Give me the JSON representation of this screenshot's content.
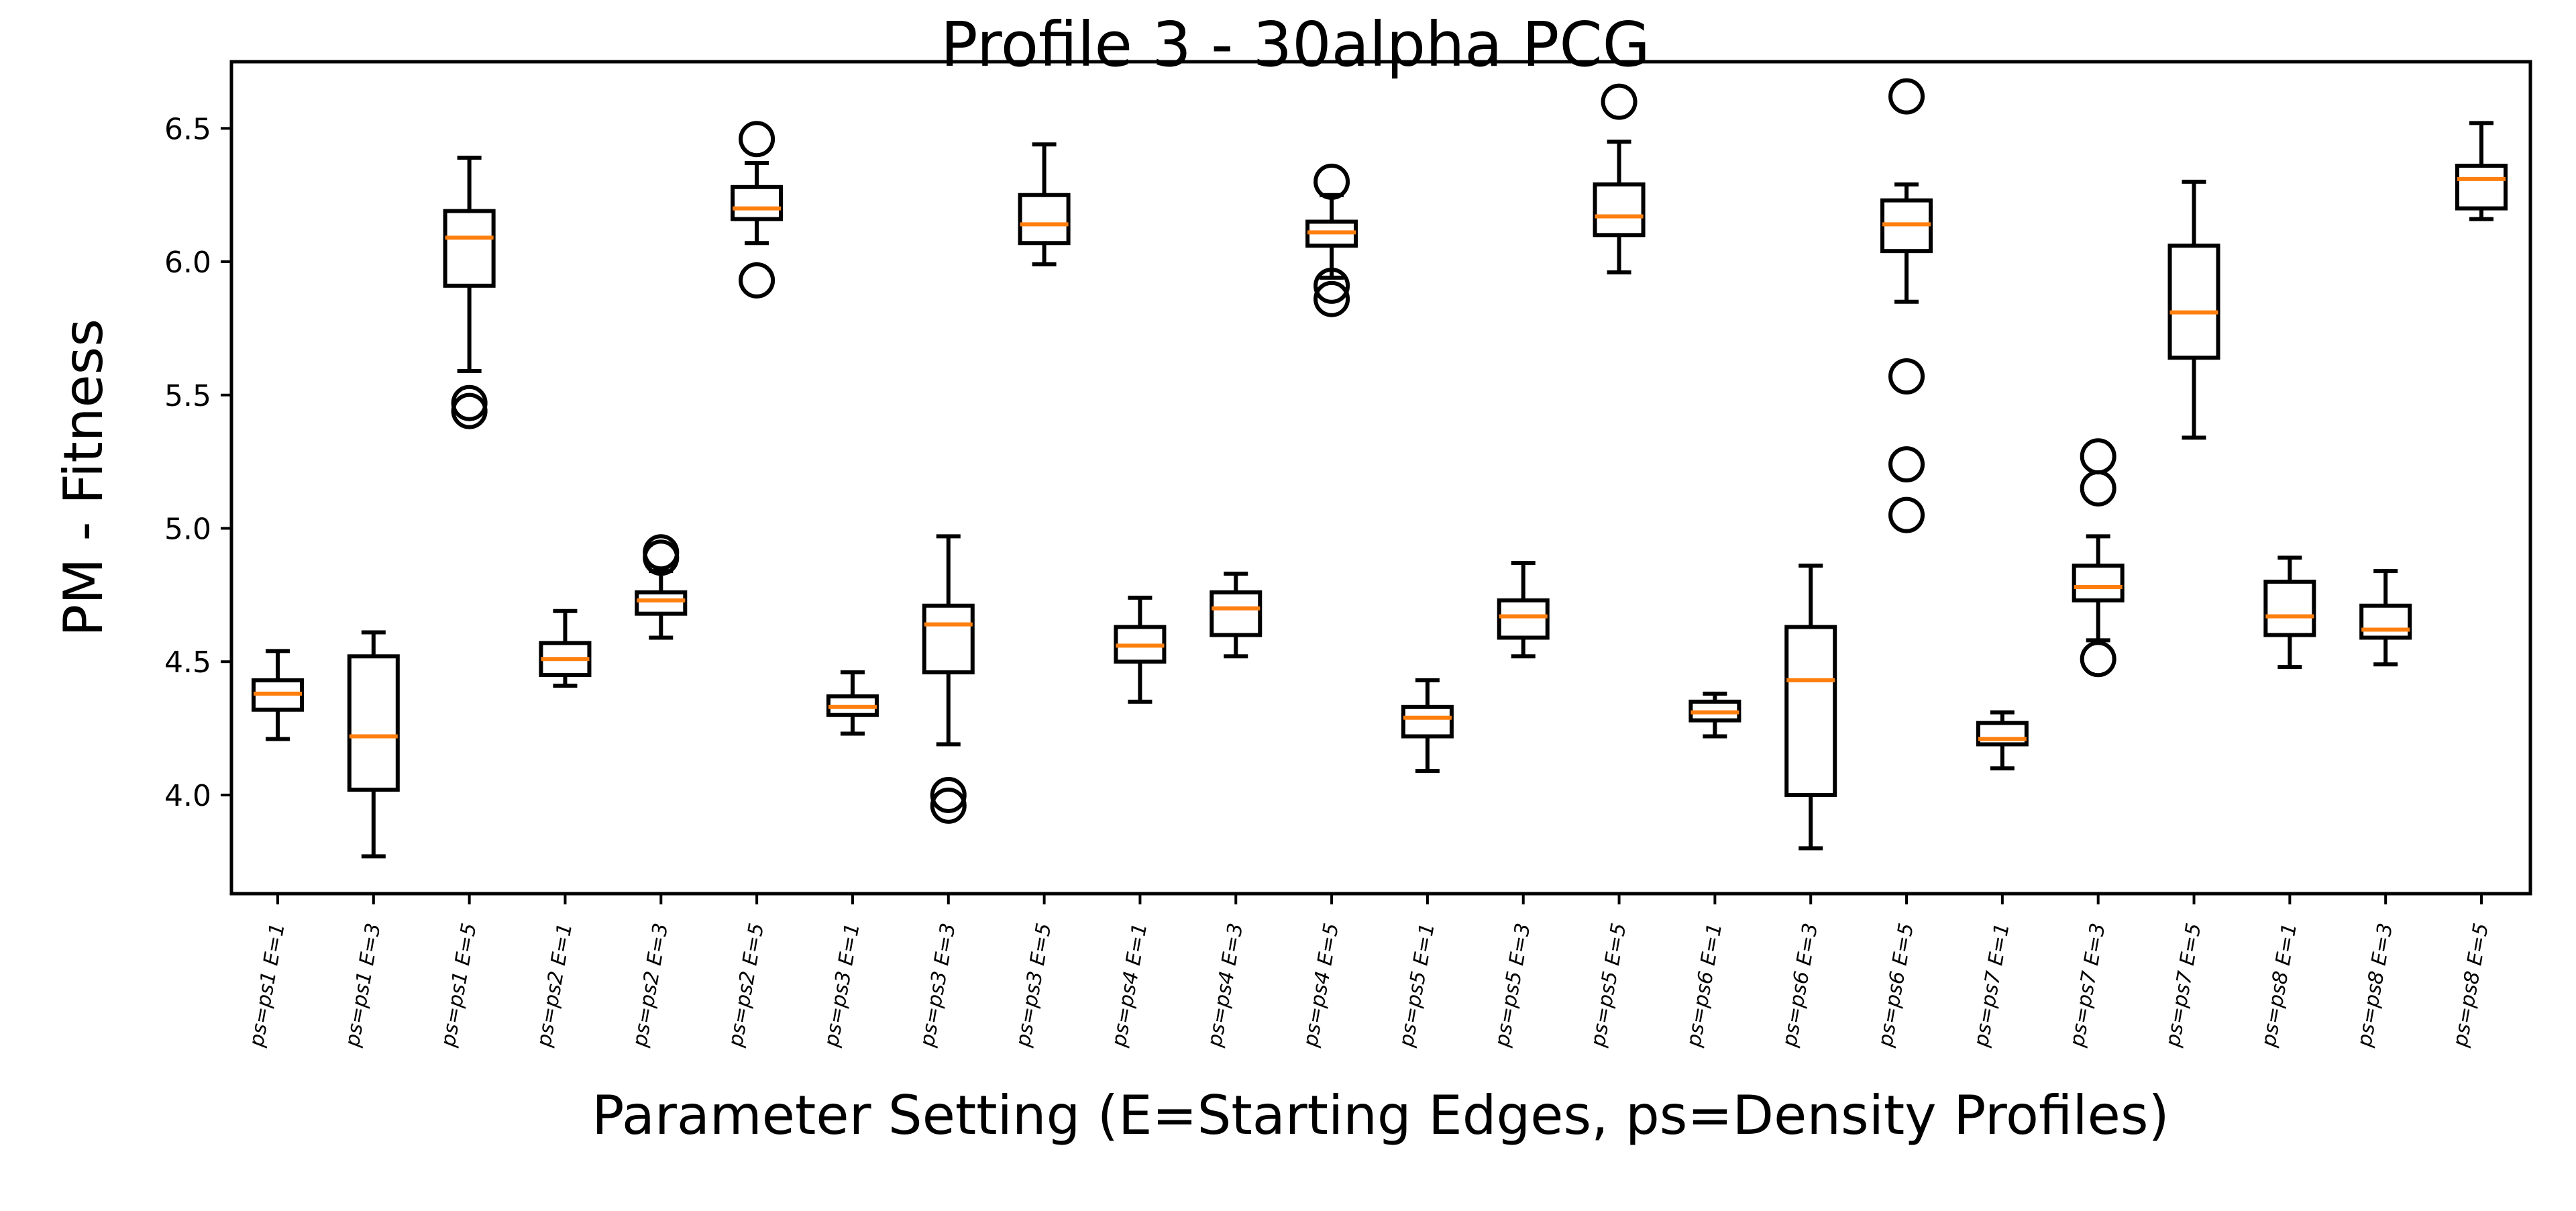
{
  "chart_data": {
    "type": "box",
    "title": "Profile 3 - 30alpha PCG",
    "xlabel": "Parameter Setting (E=Starting Edges, ps=Density Profiles)",
    "ylabel": "PM - Fitness",
    "ylim": [
      3.63,
      6.75
    ],
    "yticks": [
      4.0,
      4.5,
      5.0,
      5.5,
      6.0,
      6.5
    ],
    "ytick_labels": [
      "4.0",
      "4.5",
      "5.0",
      "5.5",
      "6.0",
      "6.5"
    ],
    "grid": false,
    "colors": {
      "box": "#000000",
      "median": "#ff7f0e"
    },
    "categories": [
      "ps=ps1 E=1",
      "ps=ps1 E=3",
      "ps=ps1 E=5",
      "ps=ps2 E=1",
      "ps=ps2 E=3",
      "ps=ps2 E=5",
      "ps=ps3 E=1",
      "ps=ps3 E=3",
      "ps=ps3 E=5",
      "ps=ps4 E=1",
      "ps=ps4 E=3",
      "ps=ps4 E=5",
      "ps=ps5 E=1",
      "ps=ps5 E=3",
      "ps=ps5 E=5",
      "ps=ps6 E=1",
      "ps=ps6 E=3",
      "ps=ps6 E=5",
      "ps=ps7 E=1",
      "ps=ps7 E=3",
      "ps=ps7 E=5",
      "ps=ps8 E=1",
      "ps=ps8 E=3",
      "ps=ps8 E=5"
    ],
    "boxes": [
      {
        "whislo": 4.21,
        "q1": 4.32,
        "med": 4.38,
        "q3": 4.43,
        "whishi": 4.54,
        "fliers": []
      },
      {
        "whislo": 3.77,
        "q1": 4.02,
        "med": 4.22,
        "q3": 4.52,
        "whishi": 4.61,
        "fliers": []
      },
      {
        "whislo": 5.59,
        "q1": 5.91,
        "med": 6.09,
        "q3": 6.19,
        "whishi": 6.39,
        "fliers": [
          5.47,
          5.44
        ]
      },
      {
        "whislo": 4.41,
        "q1": 4.45,
        "med": 4.51,
        "q3": 4.57,
        "whishi": 4.69,
        "fliers": []
      },
      {
        "whislo": 4.59,
        "q1": 4.68,
        "med": 4.73,
        "q3": 4.76,
        "whishi": 4.84,
        "fliers": [
          4.91,
          4.89
        ]
      },
      {
        "whislo": 6.07,
        "q1": 6.16,
        "med": 6.2,
        "q3": 6.28,
        "whishi": 6.37,
        "fliers": [
          6.46,
          5.93
        ]
      },
      {
        "whislo": 4.23,
        "q1": 4.3,
        "med": 4.33,
        "q3": 4.37,
        "whishi": 4.46,
        "fliers": []
      },
      {
        "whislo": 4.19,
        "q1": 4.46,
        "med": 4.64,
        "q3": 4.71,
        "whishi": 4.97,
        "fliers": [
          4.0,
          3.96
        ]
      },
      {
        "whislo": 5.99,
        "q1": 6.07,
        "med": 6.14,
        "q3": 6.25,
        "whishi": 6.44,
        "fliers": []
      },
      {
        "whislo": 4.35,
        "q1": 4.5,
        "med": 4.56,
        "q3": 4.63,
        "whishi": 4.74,
        "fliers": []
      },
      {
        "whislo": 4.52,
        "q1": 4.6,
        "med": 4.7,
        "q3": 4.76,
        "whishi": 4.83,
        "fliers": []
      },
      {
        "whislo": 5.94,
        "q1": 6.06,
        "med": 6.11,
        "q3": 6.15,
        "whishi": 6.25,
        "fliers": [
          6.3,
          5.91,
          5.86
        ]
      },
      {
        "whislo": 4.09,
        "q1": 4.22,
        "med": 4.29,
        "q3": 4.33,
        "whishi": 4.43,
        "fliers": []
      },
      {
        "whislo": 4.52,
        "q1": 4.59,
        "med": 4.67,
        "q3": 4.73,
        "whishi": 4.87,
        "fliers": []
      },
      {
        "whislo": 5.96,
        "q1": 6.1,
        "med": 6.17,
        "q3": 6.29,
        "whishi": 6.45,
        "fliers": [
          6.6
        ]
      },
      {
        "whislo": 4.22,
        "q1": 4.28,
        "med": 4.31,
        "q3": 4.35,
        "whishi": 4.38,
        "fliers": []
      },
      {
        "whislo": 3.8,
        "q1": 4.0,
        "med": 4.43,
        "q3": 4.63,
        "whishi": 4.86,
        "fliers": []
      },
      {
        "whislo": 5.85,
        "q1": 6.04,
        "med": 6.14,
        "q3": 6.23,
        "whishi": 6.29,
        "fliers": [
          6.62,
          5.57,
          5.24,
          5.05
        ]
      },
      {
        "whislo": 4.1,
        "q1": 4.19,
        "med": 4.21,
        "q3": 4.27,
        "whishi": 4.31,
        "fliers": []
      },
      {
        "whislo": 4.58,
        "q1": 4.73,
        "med": 4.78,
        "q3": 4.86,
        "whishi": 4.97,
        "fliers": [
          5.27,
          5.15,
          4.51
        ]
      },
      {
        "whislo": 5.34,
        "q1": 5.64,
        "med": 5.81,
        "q3": 6.06,
        "whishi": 6.3,
        "fliers": []
      },
      {
        "whislo": 4.48,
        "q1": 4.6,
        "med": 4.67,
        "q3": 4.8,
        "whishi": 4.89,
        "fliers": []
      },
      {
        "whislo": 4.49,
        "q1": 4.59,
        "med": 4.62,
        "q3": 4.71,
        "whishi": 4.84,
        "fliers": []
      },
      {
        "whislo": 6.16,
        "q1": 6.2,
        "med": 6.31,
        "q3": 6.36,
        "whishi": 6.52,
        "fliers": []
      }
    ]
  }
}
